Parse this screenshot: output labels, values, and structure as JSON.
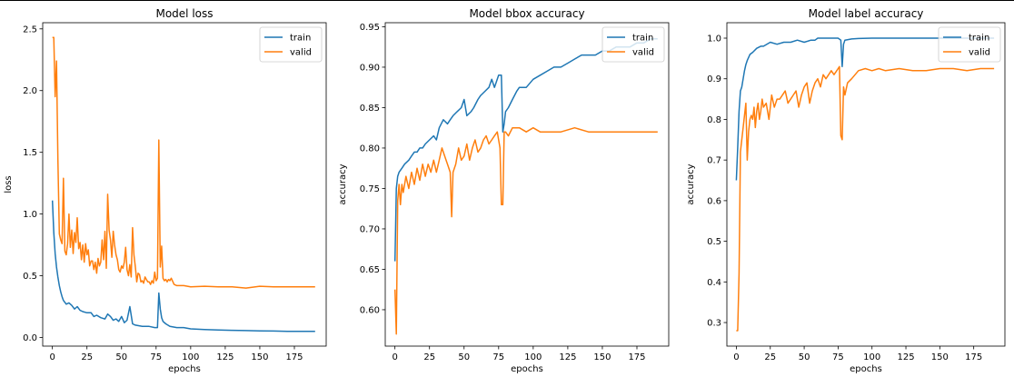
{
  "chart_data": [
    {
      "type": "line",
      "title": "Model loss",
      "xlabel": "epochs",
      "ylabel": "loss",
      "xlim": [
        -7,
        198
      ],
      "ylim": [
        -0.07,
        2.55
      ],
      "xticks": [
        0,
        25,
        50,
        75,
        100,
        125,
        150,
        175
      ],
      "yticks": [
        0.0,
        0.5,
        1.0,
        1.5,
        2.0,
        2.5
      ],
      "ytick_labels": [
        "0.0",
        "0.5",
        "1.0",
        "1.5",
        "2.0",
        "2.5"
      ],
      "legend": "top-right",
      "series": [
        {
          "name": "train",
          "color": "#1f77b4",
          "x": [
            0,
            1,
            2,
            3,
            4,
            5,
            6,
            7,
            8,
            10,
            12,
            14,
            16,
            18,
            20,
            22,
            25,
            28,
            30,
            32,
            35,
            38,
            40,
            42,
            44,
            46,
            48,
            50,
            52,
            54,
            56,
            58,
            60,
            65,
            70,
            74,
            76,
            77,
            78,
            79,
            80,
            82,
            85,
            90,
            95,
            100,
            110,
            120,
            130,
            140,
            150,
            160,
            170,
            180,
            190
          ],
          "y": [
            1.11,
            0.85,
            0.68,
            0.57,
            0.49,
            0.42,
            0.37,
            0.33,
            0.3,
            0.27,
            0.28,
            0.26,
            0.23,
            0.25,
            0.22,
            0.21,
            0.2,
            0.2,
            0.17,
            0.18,
            0.16,
            0.15,
            0.19,
            0.17,
            0.14,
            0.15,
            0.13,
            0.17,
            0.12,
            0.14,
            0.25,
            0.11,
            0.1,
            0.09,
            0.09,
            0.08,
            0.08,
            0.36,
            0.23,
            0.16,
            0.13,
            0.11,
            0.09,
            0.08,
            0.08,
            0.07,
            0.065,
            0.06,
            0.058,
            0.056,
            0.054,
            0.052,
            0.05,
            0.05,
            0.05
          ]
        },
        {
          "name": "valid",
          "color": "#ff7f0e",
          "x": [
            0,
            1,
            2,
            3,
            4,
            5,
            6,
            7,
            8,
            9,
            10,
            11,
            12,
            13,
            14,
            15,
            16,
            17,
            18,
            19,
            20,
            21,
            22,
            23,
            24,
            25,
            26,
            27,
            28,
            29,
            30,
            31,
            32,
            33,
            34,
            35,
            36,
            37,
            38,
            39,
            40,
            41,
            42,
            43,
            44,
            45,
            46,
            47,
            48,
            49,
            50,
            51,
            52,
            53,
            54,
            55,
            56,
            57,
            58,
            59,
            60,
            61,
            62,
            63,
            64,
            65,
            66,
            67,
            68,
            69,
            70,
            71,
            72,
            73,
            74,
            75,
            76,
            77,
            78,
            79,
            80,
            81,
            82,
            83,
            84,
            85,
            86,
            88,
            90,
            95,
            100,
            110,
            120,
            130,
            140,
            150,
            160,
            170,
            180,
            190
          ],
          "y": [
            2.43,
            2.43,
            1.95,
            2.24,
            1.45,
            0.84,
            0.79,
            0.76,
            1.29,
            0.7,
            0.67,
            0.76,
            1.0,
            0.73,
            0.87,
            0.68,
            0.85,
            0.77,
            0.97,
            0.72,
            0.77,
            0.63,
            0.75,
            0.61,
            0.76,
            0.67,
            0.71,
            0.58,
            0.62,
            0.62,
            0.55,
            0.61,
            0.52,
            0.64,
            0.58,
            0.61,
            0.79,
            0.63,
            0.86,
            0.56,
            1.16,
            0.87,
            0.79,
            0.65,
            0.86,
            0.75,
            0.67,
            0.63,
            0.55,
            0.53,
            0.58,
            0.56,
            0.61,
            0.73,
            0.55,
            0.5,
            0.59,
            0.49,
            0.89,
            0.67,
            0.57,
            0.45,
            0.52,
            0.51,
            0.45,
            0.46,
            0.44,
            0.49,
            0.47,
            0.45,
            0.45,
            0.43,
            0.46,
            0.44,
            0.53,
            0.46,
            0.48,
            1.6,
            0.57,
            0.74,
            0.48,
            0.46,
            0.47,
            0.45,
            0.47,
            0.46,
            0.48,
            0.43,
            0.42,
            0.42,
            0.41,
            0.415,
            0.41,
            0.41,
            0.4,
            0.415,
            0.41,
            0.41,
            0.41,
            0.41
          ]
        }
      ]
    },
    {
      "type": "line",
      "title": "Model bbox accuracy",
      "xlabel": "epochs",
      "ylabel": "accuracy",
      "xlim": [
        -7,
        198
      ],
      "ylim": [
        0.555,
        0.955
      ],
      "xticks": [
        0,
        25,
        50,
        75,
        100,
        125,
        150,
        175
      ],
      "yticks": [
        0.6,
        0.65,
        0.7,
        0.75,
        0.8,
        0.85,
        0.9,
        0.95
      ],
      "ytick_labels": [
        "0.60",
        "0.65",
        "0.70",
        "0.75",
        "0.80",
        "0.85",
        "0.90",
        "0.95"
      ],
      "legend": "top-right",
      "series": [
        {
          "name": "train",
          "color": "#1f77b4",
          "x": [
            0,
            1,
            2,
            3,
            5,
            7,
            10,
            12,
            14,
            16,
            18,
            20,
            22,
            25,
            28,
            30,
            32,
            35,
            38,
            40,
            42,
            45,
            48,
            50,
            52,
            55,
            57,
            60,
            62,
            65,
            68,
            70,
            72,
            75,
            77,
            78,
            79,
            80,
            82,
            85,
            88,
            90,
            95,
            100,
            105,
            110,
            115,
            120,
            125,
            130,
            135,
            140,
            145,
            150,
            155,
            160,
            165,
            170,
            175,
            180,
            185,
            190
          ],
          "y": [
            0.66,
            0.75,
            0.765,
            0.77,
            0.775,
            0.78,
            0.785,
            0.79,
            0.795,
            0.795,
            0.8,
            0.8,
            0.805,
            0.81,
            0.815,
            0.81,
            0.825,
            0.835,
            0.83,
            0.835,
            0.84,
            0.845,
            0.85,
            0.86,
            0.84,
            0.845,
            0.85,
            0.86,
            0.865,
            0.87,
            0.875,
            0.885,
            0.875,
            0.89,
            0.89,
            0.82,
            0.83,
            0.845,
            0.85,
            0.86,
            0.87,
            0.875,
            0.875,
            0.885,
            0.89,
            0.895,
            0.9,
            0.9,
            0.905,
            0.91,
            0.915,
            0.915,
            0.915,
            0.92,
            0.92,
            0.925,
            0.925,
            0.925,
            0.93,
            0.93,
            0.935,
            0.935
          ]
        },
        {
          "name": "valid",
          "color": "#ff7f0e",
          "x": [
            0,
            1,
            2,
            3,
            4,
            5,
            6,
            8,
            10,
            12,
            14,
            16,
            18,
            20,
            22,
            24,
            26,
            28,
            30,
            32,
            34,
            36,
            38,
            40,
            41,
            42,
            44,
            46,
            48,
            50,
            52,
            54,
            56,
            58,
            60,
            62,
            64,
            66,
            68,
            70,
            72,
            74,
            76,
            77,
            78,
            79,
            80,
            82,
            85,
            90,
            95,
            100,
            105,
            110,
            120,
            130,
            140,
            150,
            160,
            170,
            180,
            190
          ],
          "y": [
            0.625,
            0.57,
            0.735,
            0.755,
            0.73,
            0.755,
            0.745,
            0.765,
            0.75,
            0.77,
            0.755,
            0.775,
            0.76,
            0.78,
            0.765,
            0.78,
            0.77,
            0.785,
            0.77,
            0.785,
            0.8,
            0.79,
            0.78,
            0.77,
            0.715,
            0.77,
            0.78,
            0.8,
            0.785,
            0.79,
            0.805,
            0.785,
            0.8,
            0.81,
            0.795,
            0.8,
            0.81,
            0.815,
            0.805,
            0.81,
            0.815,
            0.82,
            0.8,
            0.73,
            0.73,
            0.82,
            0.82,
            0.815,
            0.825,
            0.825,
            0.82,
            0.825,
            0.82,
            0.82,
            0.82,
            0.825,
            0.82,
            0.82,
            0.82,
            0.82,
            0.82,
            0.82
          ]
        }
      ]
    },
    {
      "type": "line",
      "title": "Model label accuracy",
      "xlabel": "epochs",
      "ylabel": "accuracy",
      "xlim": [
        -7,
        198
      ],
      "ylim": [
        0.242,
        1.038
      ],
      "xticks": [
        0,
        25,
        50,
        75,
        100,
        125,
        150,
        175
      ],
      "yticks": [
        0.3,
        0.4,
        0.5,
        0.6,
        0.7,
        0.8,
        0.9,
        1.0
      ],
      "ytick_labels": [
        "0.3",
        "0.4",
        "0.5",
        "0.6",
        "0.7",
        "0.8",
        "0.9",
        "1.0"
      ],
      "legend": "top-right",
      "series": [
        {
          "name": "train",
          "color": "#1f77b4",
          "x": [
            0,
            1,
            2,
            3,
            4,
            5,
            6,
            7,
            8,
            10,
            12,
            15,
            18,
            20,
            25,
            30,
            35,
            40,
            45,
            50,
            55,
            58,
            60,
            65,
            70,
            75,
            77,
            78,
            79,
            80,
            85,
            90,
            100,
            110,
            120,
            140,
            160,
            180,
            190
          ],
          "y": [
            0.65,
            0.73,
            0.82,
            0.87,
            0.88,
            0.9,
            0.92,
            0.935,
            0.945,
            0.96,
            0.965,
            0.975,
            0.98,
            0.98,
            0.99,
            0.985,
            0.99,
            0.99,
            0.995,
            0.99,
            0.995,
            0.995,
            1.0,
            1.0,
            1.0,
            1.0,
            0.995,
            0.93,
            0.985,
            0.995,
            0.998,
            0.999,
            1.0,
            1.0,
            1.0,
            1.0,
            1.0,
            1.0,
            1.0
          ]
        },
        {
          "name": "valid",
          "color": "#ff7f0e",
          "x": [
            0,
            1,
            2,
            3,
            4,
            5,
            6,
            7,
            8,
            9,
            10,
            11,
            12,
            13,
            14,
            15,
            16,
            17,
            18,
            19,
            20,
            22,
            24,
            26,
            28,
            30,
            32,
            34,
            36,
            38,
            40,
            42,
            44,
            46,
            48,
            50,
            52,
            54,
            56,
            58,
            60,
            62,
            64,
            66,
            68,
            70,
            72,
            74,
            76,
            77,
            78,
            79,
            80,
            82,
            85,
            90,
            95,
            100,
            105,
            110,
            120,
            130,
            140,
            150,
            160,
            170,
            180,
            190
          ],
          "y": [
            0.28,
            0.28,
            0.42,
            0.72,
            0.75,
            0.78,
            0.81,
            0.84,
            0.7,
            0.77,
            0.8,
            0.81,
            0.8,
            0.83,
            0.78,
            0.82,
            0.84,
            0.8,
            0.82,
            0.85,
            0.83,
            0.84,
            0.8,
            0.86,
            0.83,
            0.85,
            0.85,
            0.86,
            0.87,
            0.84,
            0.85,
            0.86,
            0.87,
            0.83,
            0.86,
            0.88,
            0.89,
            0.84,
            0.87,
            0.89,
            0.9,
            0.88,
            0.91,
            0.9,
            0.91,
            0.92,
            0.91,
            0.92,
            0.93,
            0.76,
            0.75,
            0.88,
            0.86,
            0.89,
            0.9,
            0.92,
            0.925,
            0.92,
            0.925,
            0.92,
            0.925,
            0.92,
            0.92,
            0.925,
            0.925,
            0.92,
            0.925,
            0.925
          ]
        }
      ]
    }
  ]
}
